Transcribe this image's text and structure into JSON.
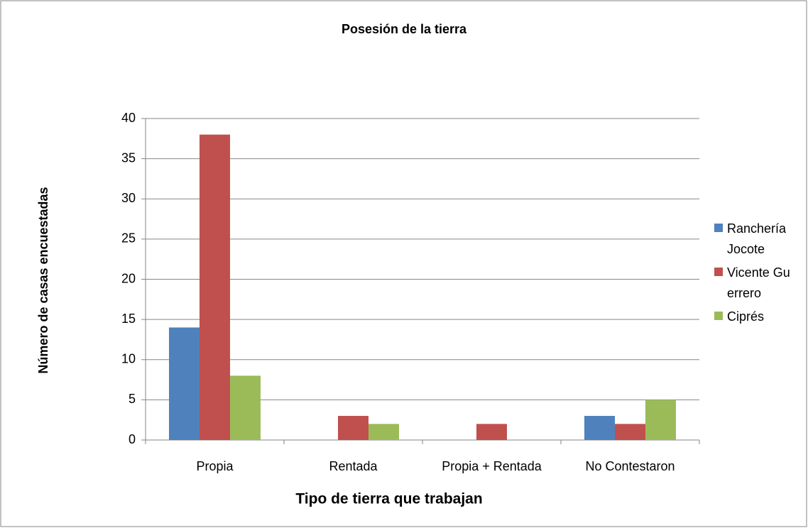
{
  "chart_data": {
    "type": "bar",
    "title": "Posesión de la tierra",
    "x_label": "Tipo de tierra que trabajan",
    "y_label": "Número de casas encuestadas",
    "categories": [
      "Propia",
      "Rentada",
      "Propia + Rentada",
      "No Contestaron"
    ],
    "series": [
      {
        "name": "Ranchería Jocote",
        "color": "#4f81bd",
        "values": [
          14,
          0,
          0,
          3
        ]
      },
      {
        "name": "Vicente Guerrero",
        "color": "#c0504d",
        "values": [
          38,
          3,
          2,
          2
        ]
      },
      {
        "name": "Ciprés",
        "color": "#9bbb59",
        "values": [
          8,
          2,
          0,
          5
        ]
      }
    ],
    "ylim": [
      0,
      40
    ],
    "yticks": [
      0,
      5,
      10,
      15,
      20,
      25,
      30,
      35,
      40
    ],
    "grid": true,
    "legend": "right"
  }
}
